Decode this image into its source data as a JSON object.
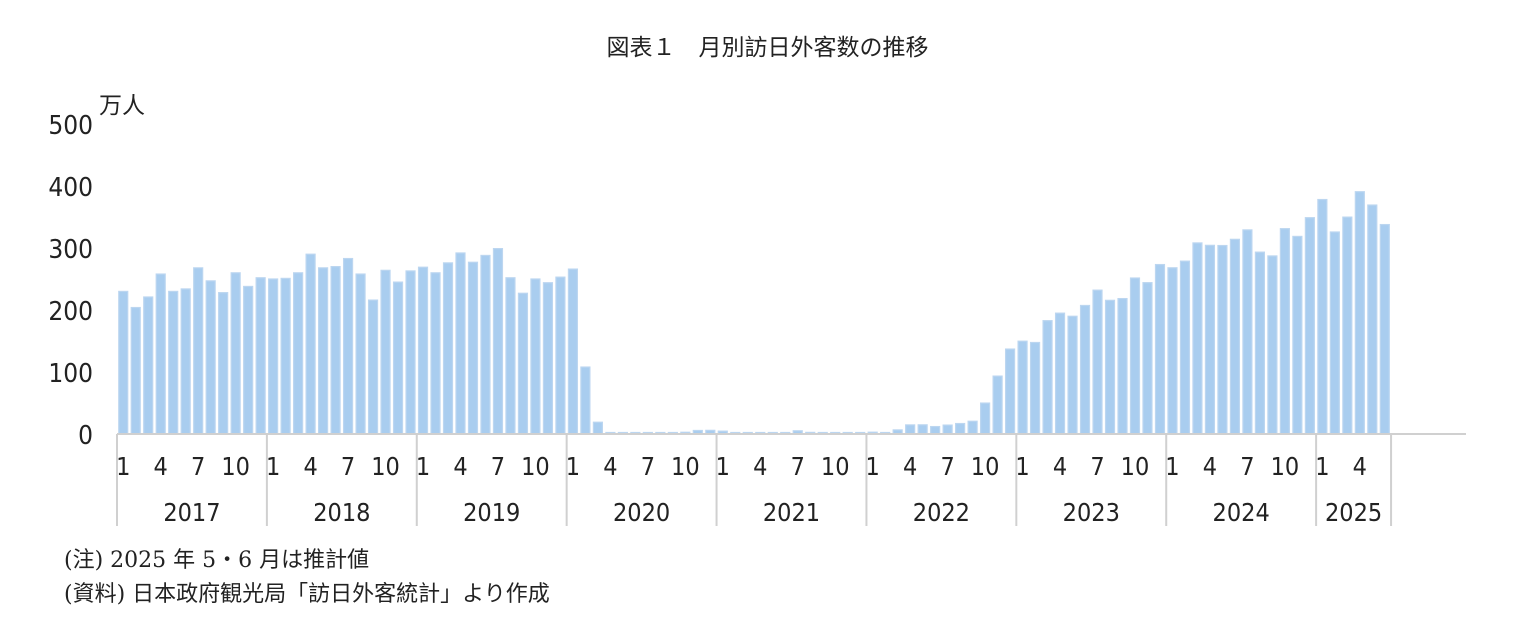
{
  "chart_data": {
    "type": "bar",
    "title": "図表１　月別訪日外客数の推移",
    "ylabel": "万人",
    "ylim": [
      0,
      500
    ],
    "yticks": [
      0,
      100,
      200,
      300,
      400,
      500
    ],
    "grid": false,
    "bar_color": "#a9cdef",
    "bar_edge_color": "#bcd6f0",
    "month_tick_labels": [
      "1",
      "4",
      "7",
      "10"
    ],
    "years": [
      "2017",
      "2018",
      "2019",
      "2020",
      "2021",
      "2022",
      "2023",
      "2024",
      "2025"
    ],
    "series": [
      {
        "values": [
          230,
          204,
          221,
          258,
          230,
          234,
          268,
          247,
          228,
          260,
          238,
          252,
          250,
          251,
          260,
          290,
          268,
          270,
          283,
          258,
          216,
          264,
          245,
          263,
          269,
          260,
          276,
          292,
          277,
          288,
          299,
          252,
          227,
          250,
          244,
          253,
          266,
          108,
          19,
          0.3,
          0.2,
          0.3,
          0.4,
          0.9,
          1.4,
          2.8,
          5.7,
          5.9,
          4.6,
          0.7,
          1.2,
          1.1,
          1.0,
          1.0,
          5.2,
          2.6,
          1.2,
          2.3,
          2.4,
          1.2,
          2.9,
          1.7,
          6.6,
          14.7,
          14.8,
          12.0,
          14.4,
          16.9,
          20.6,
          49.9,
          93.4,
          137.0,
          149.7,
          147.6,
          182.8,
          194.9,
          189.9,
          207.3,
          232.0,
          215.6,
          218.4,
          251.6,
          244.1,
          273.3,
          268.1,
          278.8,
          308.2,
          304.3,
          304.0,
          314.0,
          329.2,
          293.3,
          287.2,
          331.2,
          318.7,
          348.9,
          378.2,
          325.8,
          349.8,
          390.8,
          369.3,
          337.8
        ]
      }
    ]
  },
  "notes": {
    "note1": "(注) 2025 年 5・6 月は推計値",
    "note2": "(資料) 日本政府観光局「訪日外客統計」より作成"
  }
}
